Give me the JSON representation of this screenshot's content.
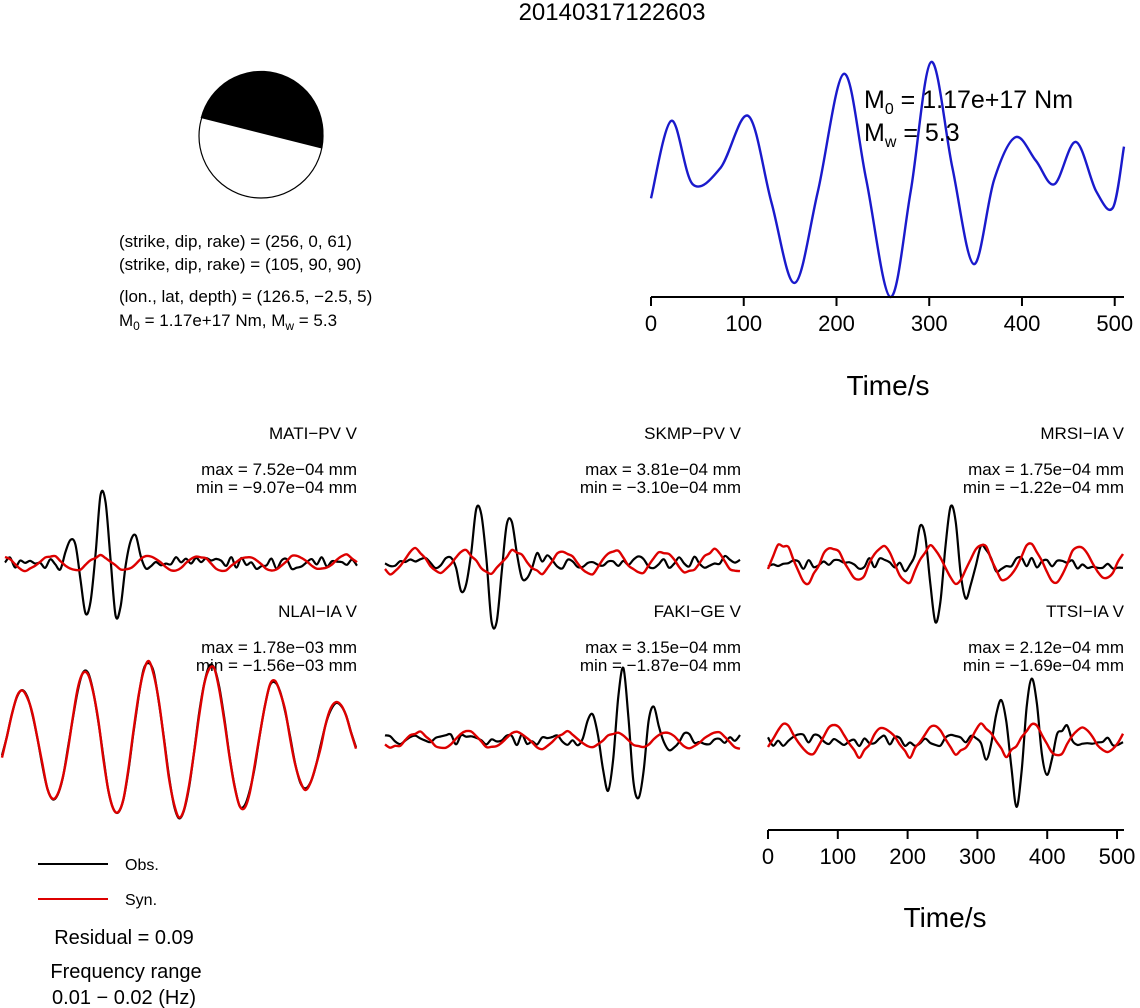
{
  "title": "20140317122603",
  "focal": {
    "params_1": "(strike, dip, rake) = (256, 0, 61)",
    "params_2": "(strike, dip, rake) = (105, 90, 90)",
    "location": "(lon., lat, depth) = (126.5, −2.5, 5)",
    "moment_prefix": "M",
    "moment_sub": "0",
    "moment_mid": " = 1.17e+17 Nm, M",
    "moment_sub2": "w",
    "moment_suffix": " = 5.3"
  },
  "stf": {
    "m0_label": "M",
    "m0_sub": "0",
    "m0_value": " = 1.17e+17 Nm",
    "mw_label": "M",
    "mw_sub": "w",
    "mw_value": " = 5.3"
  },
  "axes": {
    "xlabel": "Time/s",
    "tick_labels": [
      "0",
      "100",
      "200",
      "300",
      "400",
      "500"
    ]
  },
  "stations": [
    {
      "name": "MATI−PV V",
      "max": "max = 7.52e−04 mm",
      "min": "min = −9.07e−04 mm"
    },
    {
      "name": "SKMP−PV V",
      "max": "max = 3.81e−04 mm",
      "min": "min = −3.10e−04 mm"
    },
    {
      "name": "MRSI−IA V",
      "max": "max = 1.75e−04 mm",
      "min": "min = −1.22e−04 mm"
    },
    {
      "name": "NLAI−IA V",
      "max": "max = 1.78e−03 mm",
      "min": "min = −1.56e−03 mm"
    },
    {
      "name": "FAKI−GE V",
      "max": "max = 3.15e−04 mm",
      "min": "min = −1.87e−04 mm"
    },
    {
      "name": "TTSI−IA V",
      "max": "max = 2.12e−04 mm",
      "min": "min = −1.69e−04 mm"
    }
  ],
  "legend": {
    "obs": "Obs.",
    "syn": "Syn.",
    "obs_color": "#000000",
    "syn_color": "#dd0000"
  },
  "residual": "Residual = 0.09",
  "freq_label": "Frequency range",
  "freq_value": "0.01 − 0.02 (Hz)",
  "colors": {
    "stf": "#1a1acc",
    "obs": "#000000",
    "syn": "#dd0000"
  },
  "chart_data": [
    {
      "type": "line",
      "name": "source time function",
      "xlabel": "Time/s",
      "xlim": [
        0,
        510
      ],
      "x": [
        0,
        22,
        45,
        75,
        105,
        130,
        155,
        180,
        208,
        232,
        258,
        280,
        302,
        325,
        348,
        370,
        393,
        415,
        435,
        458,
        480,
        498,
        510
      ],
      "y": [
        0.42,
        0.75,
        0.48,
        0.55,
        0.77,
        0.4,
        0.06,
        0.45,
        0.95,
        0.5,
        0.0,
        0.45,
        1.0,
        0.55,
        0.14,
        0.5,
        0.68,
        0.58,
        0.48,
        0.66,
        0.45,
        0.38,
        0.64
      ]
    },
    {
      "type": "line",
      "name": "waveforms",
      "xlabel": "Time/s",
      "xlim": [
        0,
        510
      ],
      "series": [
        {
          "name": "Obs.",
          "station": "MATI−PV V"
        },
        {
          "name": "Syn.",
          "station": "MATI−PV V"
        },
        {
          "name": "Obs.",
          "station": "SKMP−PV V"
        },
        {
          "name": "Syn.",
          "station": "SKMP−PV V"
        },
        {
          "name": "Obs.",
          "station": "MRSI−IA V"
        },
        {
          "name": "Syn.",
          "station": "MRSI−IA V"
        },
        {
          "name": "Obs.",
          "station": "NLAI−IA V"
        },
        {
          "name": "Syn.",
          "station": "NLAI−IA V"
        },
        {
          "name": "Obs.",
          "station": "FAKI−GE V"
        },
        {
          "name": "Syn.",
          "station": "FAKI−GE V"
        },
        {
          "name": "Obs.",
          "station": "TTSI−IA V"
        },
        {
          "name": "Syn.",
          "station": "TTSI−IA V"
        }
      ]
    }
  ]
}
